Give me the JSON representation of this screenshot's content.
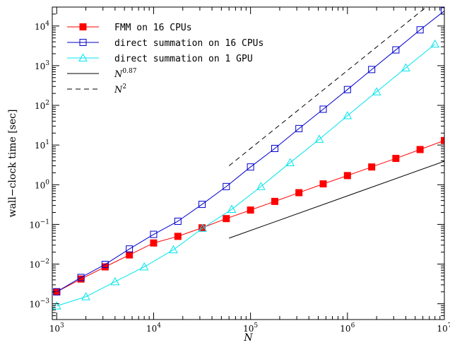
{
  "chart_data": {
    "type": "line",
    "xlabel": "N",
    "ylabel": "wall−clock time [sec]",
    "x_scale": "log",
    "y_scale": "log",
    "xlim": [
      900,
      10000000
    ],
    "ylim": [
      0.0004,
      30000
    ],
    "grid": false,
    "legend_position": "top-left",
    "x_ticks": [
      {
        "value": 1000,
        "base": "10",
        "exp": "3"
      },
      {
        "value": 10000,
        "base": "10",
        "exp": "4"
      },
      {
        "value": 100000,
        "base": "10",
        "exp": "5"
      },
      {
        "value": 1000000,
        "base": "10",
        "exp": "6"
      },
      {
        "value": 10000000,
        "base": "10",
        "exp": "7"
      }
    ],
    "y_ticks": [
      {
        "value": 0.001,
        "base": "10",
        "exp": "−3"
      },
      {
        "value": 0.01,
        "base": "10",
        "exp": "−2"
      },
      {
        "value": 0.1,
        "base": "10",
        "exp": "−1"
      },
      {
        "value": 1,
        "base": "10",
        "exp": "0"
      },
      {
        "value": 10,
        "base": "10",
        "exp": "1"
      },
      {
        "value": 100,
        "base": "10",
        "exp": "2"
      },
      {
        "value": 1000,
        "base": "10",
        "exp": "3"
      },
      {
        "value": 10000,
        "base": "10",
        "exp": "4"
      }
    ],
    "series": [
      {
        "name": "FMM on 16 CPUs",
        "color": "#ff0000",
        "marker": "filled-square",
        "points": [
          [
            1000,
            0.002
          ],
          [
            1780,
            0.0042
          ],
          [
            3160,
            0.0085
          ],
          [
            5620,
            0.017
          ],
          [
            10000,
            0.034
          ],
          [
            17800,
            0.05
          ],
          [
            31600,
            0.082
          ],
          [
            56200,
            0.14
          ],
          [
            100000,
            0.23
          ],
          [
            178000,
            0.38
          ],
          [
            316000,
            0.63
          ],
          [
            562000,
            1.05
          ],
          [
            1000000,
            1.7
          ],
          [
            1780000,
            2.8
          ],
          [
            3160000,
            4.6
          ],
          [
            5620000,
            7.7
          ],
          [
            10000000,
            13
          ]
        ]
      },
      {
        "name": "direct summation on 16 CPUs",
        "color": "#0000cc",
        "marker": "open-square",
        "points": [
          [
            1000,
            0.002
          ],
          [
            1780,
            0.0046
          ],
          [
            3160,
            0.0098
          ],
          [
            5620,
            0.024
          ],
          [
            10000,
            0.056
          ],
          [
            17800,
            0.12
          ],
          [
            31600,
            0.32
          ],
          [
            56200,
            0.9
          ],
          [
            100000,
            2.8
          ],
          [
            178000,
            8.2
          ],
          [
            316000,
            26
          ],
          [
            562000,
            80
          ],
          [
            1000000,
            250
          ],
          [
            1780000,
            800
          ],
          [
            3160000,
            2500
          ],
          [
            5620000,
            8000
          ],
          [
            10000000,
            24000
          ]
        ]
      },
      {
        "name": "direct summation on 1 GPU",
        "color": "#00e5ee",
        "marker": "open-triangle",
        "points": [
          [
            1000,
            0.00088
          ],
          [
            2000,
            0.0015
          ],
          [
            4000,
            0.0036
          ],
          [
            8000,
            0.0085
          ],
          [
            16000,
            0.023
          ],
          [
            32000,
            0.08
          ],
          [
            64000,
            0.24
          ],
          [
            128000,
            0.9
          ],
          [
            256000,
            3.6
          ],
          [
            512000,
            14
          ],
          [
            1000000,
            55
          ],
          [
            2000000,
            220
          ],
          [
            4000000,
            880
          ],
          [
            8000000,
            3500
          ]
        ]
      },
      {
        "name": "N^0.87",
        "label_base": "N",
        "label_exp": "0.87",
        "color": "#000000",
        "line_style": "solid",
        "points": [
          [
            60000,
            0.045
          ],
          [
            10000000,
            3.9
          ]
        ]
      },
      {
        "name": "N^2",
        "label_base": "N",
        "label_exp": "2",
        "color": "#000000",
        "line_style": "dashed",
        "points": [
          [
            60000,
            3
          ],
          [
            6500000,
            30000
          ]
        ]
      }
    ]
  }
}
